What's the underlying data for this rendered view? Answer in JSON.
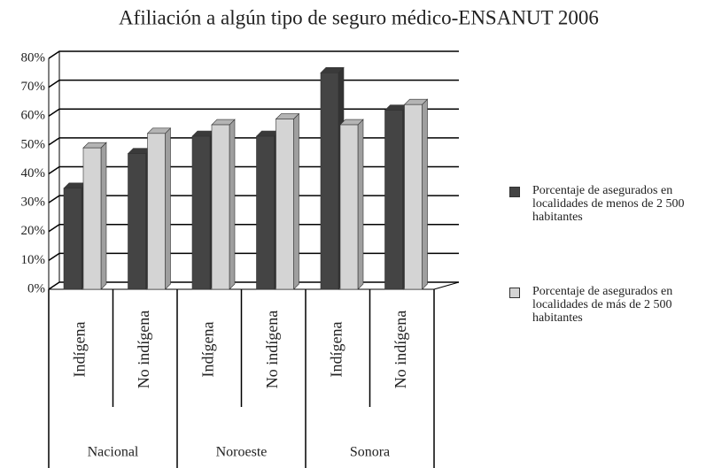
{
  "chart_data": {
    "type": "bar3d",
    "title": "Afiliación a algún tipo de seguro médico-ENSANUT 2006",
    "categories": [
      "Indígena",
      "No indígena",
      "Indígena",
      "No indígena",
      "Indígena",
      "No indígena"
    ],
    "groups": [
      "Nacional",
      "Noroeste",
      "Sonora"
    ],
    "series": [
      {
        "name": "Porcentaje de asegurados en localidades de menos de 2 500 habitantes",
        "color": "#444444",
        "values": [
          35,
          47,
          53,
          53,
          75,
          62
        ]
      },
      {
        "name": "Porcentaje de asegurados en localidades de más de 2 500 habitantes",
        "color": "#d4d4d4",
        "values": [
          49,
          54,
          57,
          59,
          57,
          64
        ]
      }
    ],
    "ylim": [
      0,
      80
    ],
    "yticks": [
      {
        "value": 0,
        "label": "0%"
      },
      {
        "value": 10,
        "label": "10%"
      },
      {
        "value": 20,
        "label": "20%"
      },
      {
        "value": 30,
        "label": "30%"
      },
      {
        "value": 40,
        "label": "40%"
      },
      {
        "value": 50,
        "label": "50%"
      },
      {
        "value": 60,
        "label": "60%"
      },
      {
        "value": 70,
        "label": "70%"
      },
      {
        "value": 80,
        "label": "80%"
      }
    ],
    "grid": true
  }
}
